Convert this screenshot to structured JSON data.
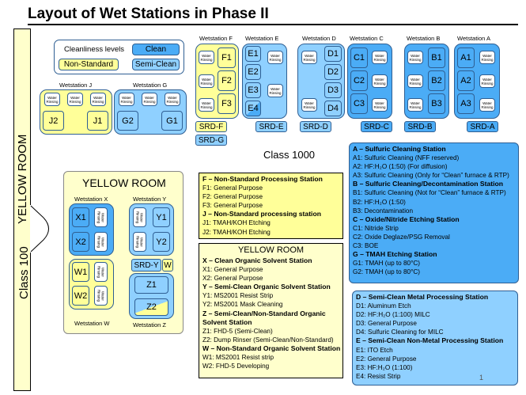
{
  "title": "Layout of Wet Stations in Phase II",
  "rinse_label": "Water Rinsing",
  "legend": {
    "heading": "Cleanliness levels",
    "clean": "Clean",
    "non_standard": "Non-Standard",
    "semi_clean": "Semi-Clean"
  },
  "stations": {
    "F": {
      "label": "Wetstation F",
      "tanks": [
        "F1",
        "F2",
        "F3"
      ]
    },
    "E": {
      "label": "Wetstation E",
      "tanks": [
        "E1",
        "E2",
        "E3",
        "E4"
      ]
    },
    "D": {
      "label": "Wetstation D",
      "tanks": [
        "D1",
        "D2",
        "D3",
        "D4"
      ]
    },
    "C": {
      "label": "Wetstation C",
      "tanks": [
        "C1",
        "C2",
        "C3"
      ]
    },
    "B": {
      "label": "Wetstation B",
      "tanks": [
        "B1",
        "B2",
        "B3"
      ]
    },
    "A": {
      "label": "Wetstation A",
      "tanks": [
        "A1",
        "A2",
        "A3"
      ]
    },
    "J": {
      "label": "Wetstation J",
      "tanks": [
        "J2",
        "J1"
      ]
    },
    "G": {
      "label": "Wetstation G",
      "tanks": [
        "G2",
        "G1"
      ]
    },
    "X": {
      "label": "Wetstation X",
      "tanks": [
        "X1",
        "X2"
      ]
    },
    "Y": {
      "label": "Wetstation Y",
      "tanks": [
        "Y1",
        "Y2"
      ]
    },
    "W": {
      "label": "Wetstation W",
      "tanks": [
        "W1",
        "W2"
      ]
    },
    "Z": {
      "label": "Wetstation Z",
      "tanks": [
        "Z1",
        "Z2"
      ]
    }
  },
  "srd": {
    "F": "SRD-F",
    "G": "SRD-G",
    "E": "SRD-E",
    "D": "SRD-D",
    "C": "SRD-C",
    "B": "SRD-B",
    "A": "SRD-A",
    "Y": "SRD-Y",
    "W": "W"
  },
  "yellow_room_vertical": "YELLOW ROOM",
  "class_100": "Class 100",
  "class_1000": "Class 1000",
  "yellow_room_heading": "YELLOW ROOM",
  "box_fj": {
    "lines": [
      {
        "t": "F – Non-Standard Processing Station",
        "h": true
      },
      {
        "t": "F1: General Purpose"
      },
      {
        "t": "F2: General Purpose"
      },
      {
        "t": "F3: General Purpose"
      },
      {
        "t": "J – Non-Standard processing station",
        "h": true
      },
      {
        "t": "J1: TMAH/KOH Etching"
      },
      {
        "t": "J2: TMAH/KOH Etching"
      }
    ]
  },
  "box_xyzw": {
    "heading": "YELLOW ROOM",
    "lines": [
      {
        "t": "X – Clean Organic Solvent Station",
        "h": true
      },
      {
        "t": "X1: General Purpose"
      },
      {
        "t": "X2: General Purpose"
      },
      {
        "t": "Y – Semi-Clean Organic Solvent Station",
        "h": true
      },
      {
        "t": "Y1: MS2001 Resist Strip"
      },
      {
        "t": "Y2: MS2001 Mask Cleaning"
      },
      {
        "t": "Z – Semi-Clean/Non-Standard Organic",
        "h": true
      },
      {
        "t": "Solvent Station",
        "h": true
      },
      {
        "t": "Z1: FHD-5 (Semi-Clean)"
      },
      {
        "t": "Z2: Dump Rinser (Semi-Clean/Non-Standard)"
      },
      {
        "t": "W – Non-Standard Organic Solvent Station",
        "h": true
      },
      {
        "t": "W1: MS2001 Resist strip"
      },
      {
        "t": "W2: FHD-5 Developing"
      }
    ]
  },
  "box_abcg": {
    "lines": [
      {
        "t": "A – Sulfuric Cleaning Station",
        "h": true
      },
      {
        "t": "A1: Sulfuric Cleaning (NFF reserved)"
      },
      {
        "t": "A2: HF:H₂O (1:50) (For diffusion)"
      },
      {
        "t": "A3: Sulfuric Cleaning (Only for “Clean” furnace & RTP)"
      },
      {
        "t": "B – Sulfuric Cleaning/Decontamination Station",
        "h": true
      },
      {
        "t": "B1: Sulfuric Cleaning (Not for “Clean” furnace & RTP)"
      },
      {
        "t": "B2: HF:H₂O (1:50)"
      },
      {
        "t": "B3: Decontamination"
      },
      {
        "t": "C – Oxide/Nitride Etching Station",
        "h": true
      },
      {
        "t": "C1: Nitride Strip"
      },
      {
        "t": "C2: Oxide Deglaze/PSG Removal"
      },
      {
        "t": "C3: BOE"
      },
      {
        "t": "G – TMAH Etching Station",
        "h": true
      },
      {
        "t": "G1: TMAH (up to 80°C)"
      },
      {
        "t": "G2: TMAH (up to 80°C)"
      }
    ]
  },
  "box_de": {
    "lines": [
      {
        "t": "D – Semi-Clean Metal Processing Station",
        "h": true
      },
      {
        "t": "D1: Aluminum Etch"
      },
      {
        "t": "D2: HF:H₂O (1:100) MILC"
      },
      {
        "t": "D3: General Purpose"
      },
      {
        "t": "D4: Sulfuric Cleaning for MILC"
      },
      {
        "t": "E – Semi-Clean Non-Metal Processing Station",
        "h": true
      },
      {
        "t": "E1: ITO Etch"
      },
      {
        "t": "E2: General Purpose"
      },
      {
        "t": "E3: HF:H₂O (1:100)"
      },
      {
        "t": "E4: Resist Strip"
      }
    ]
  },
  "page_number": "1",
  "colors": {
    "clean": "#4bacf6",
    "semi_clean": "#8fd0ff",
    "non_standard": "#ffff99",
    "border": "#2f5f93"
  }
}
